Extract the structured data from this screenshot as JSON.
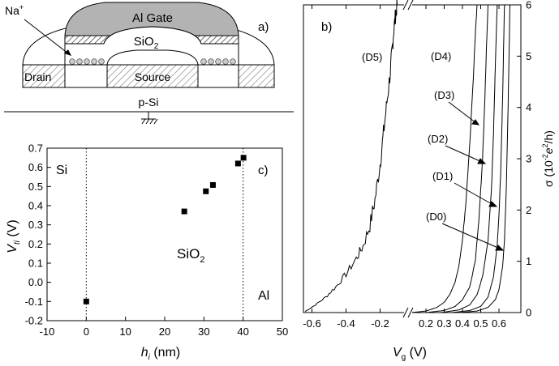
{
  "panel_a": {
    "label": "a)",
    "gate_label": "Al Gate",
    "oxide_label": "SiO",
    "oxide_sub": "2",
    "ion_label": "Na",
    "ion_sup": "+",
    "drain_label": "Drain",
    "source_label": "Source",
    "substrate_label": "p-Si"
  },
  "chart_data": [
    {
      "type": "scatter",
      "panel_label": "c)",
      "xlabel_main": "h",
      "xlabel_sub": "i",
      "xlabel_unit": " (nm)",
      "ylabel_main": "V",
      "ylabel_sub": "ti",
      "ylabel_unit": " (V)",
      "xlim": [
        -10,
        50
      ],
      "ylim": [
        -0.2,
        0.7
      ],
      "xticks": [
        -10,
        0,
        10,
        20,
        30,
        40,
        50
      ],
      "yticks": [
        -0.2,
        -0.1,
        0.0,
        0.1,
        0.2,
        0.3,
        0.4,
        0.5,
        0.6,
        0.7
      ],
      "ytick_labels": [
        "-0.2",
        "-0.1",
        "0.0",
        "0.1",
        "0.2",
        "0.3",
        "0.4",
        "0.5",
        "0.6",
        "0.7"
      ],
      "vlines": [
        0,
        40
      ],
      "region_labels": {
        "left": "Si",
        "middle": "SiO",
        "middle_sub": "2",
        "right": "Al"
      },
      "points": [
        {
          "x": 0,
          "y": -0.1
        },
        {
          "x": 25,
          "y": 0.37
        },
        {
          "x": 30.5,
          "y": 0.475
        },
        {
          "x": 32.3,
          "y": 0.508
        },
        {
          "x": 38.7,
          "y": 0.62
        },
        {
          "x": 40.1,
          "y": 0.65
        }
      ]
    },
    {
      "type": "line",
      "panel_label": "b)",
      "xlabel_main": "V",
      "xlabel_sub": "g",
      "xlabel_unit": " (V)",
      "ylabel_prefix": "σ (10",
      "ylabel_sup1": "-2",
      "ylabel_mid": "e",
      "ylabel_sup2": "2",
      "ylabel_suffix": "/h)",
      "ylim": [
        0,
        6
      ],
      "yticks": [
        0,
        1,
        2,
        3,
        4,
        5,
        6
      ],
      "x_segments": [
        {
          "xlim": [
            -0.65,
            -0.05
          ],
          "ticks": [
            -0.6,
            -0.4,
            -0.2
          ],
          "tick_labels": [
            "-0.6",
            "-0.4",
            "-0.2"
          ]
        },
        {
          "xlim": [
            0.12,
            0.72
          ],
          "ticks": [
            0.2,
            0.3,
            0.4,
            0.5,
            0.6
          ],
          "tick_labels": [
            "0.2",
            "0.3",
            "0.4",
            "0.5",
            "0.6"
          ]
        }
      ],
      "series": [
        {
          "name": "(D5)",
          "segment": 0,
          "x": [
            -0.64,
            -0.58,
            -0.52,
            -0.46,
            -0.4,
            -0.34,
            -0.3,
            -0.26,
            -0.23,
            -0.2,
            -0.18,
            -0.16,
            -0.14,
            -0.13,
            -0.12,
            -0.11,
            -0.1
          ],
          "y": [
            0.02,
            0.15,
            0.3,
            0.5,
            0.75,
            1.05,
            1.3,
            1.7,
            2.2,
            2.9,
            3.5,
            4.1,
            4.7,
            5.1,
            5.5,
            5.8,
            6.0
          ]
        },
        {
          "name": "(D4)",
          "segment": 1,
          "x": [
            0.12,
            0.2,
            0.26,
            0.3,
            0.33,
            0.36,
            0.38,
            0.4,
            0.42,
            0.44,
            0.46,
            0.47,
            0.48
          ],
          "y": [
            0.0,
            0.03,
            0.1,
            0.2,
            0.35,
            0.6,
            0.9,
            1.4,
            2.2,
            3.3,
            4.6,
            5.4,
            6.0
          ]
        },
        {
          "name": "(D3)",
          "segment": 1,
          "x": [
            0.2,
            0.3,
            0.36,
            0.4,
            0.44,
            0.47,
            0.49,
            0.51,
            0.52,
            0.53,
            0.54
          ],
          "y": [
            0.0,
            0.04,
            0.12,
            0.25,
            0.5,
            1.0,
            1.8,
            3.0,
            3.9,
            5.0,
            6.0
          ]
        },
        {
          "name": "(D2)",
          "segment": 1,
          "x": [
            0.28,
            0.38,
            0.44,
            0.48,
            0.51,
            0.54,
            0.56,
            0.57,
            0.58,
            0.59
          ],
          "y": [
            0.0,
            0.05,
            0.15,
            0.35,
            0.7,
            1.4,
            2.5,
            3.5,
            4.8,
            6.0
          ]
        },
        {
          "name": "(D1)",
          "segment": 1,
          "x": [
            0.34,
            0.44,
            0.5,
            0.54,
            0.57,
            0.59,
            0.6,
            0.61,
            0.62,
            0.63
          ],
          "y": [
            0.0,
            0.04,
            0.12,
            0.3,
            0.7,
            1.3,
            1.9,
            2.8,
            4.2,
            6.0
          ]
        },
        {
          "name": "(D0)",
          "segment": 1,
          "x": [
            0.38,
            0.48,
            0.54,
            0.58,
            0.6,
            0.62,
            0.63,
            0.64,
            0.65,
            0.66
          ],
          "y": [
            0.0,
            0.03,
            0.1,
            0.25,
            0.45,
            0.9,
            1.4,
            2.4,
            4.0,
            6.0
          ]
        }
      ]
    }
  ]
}
